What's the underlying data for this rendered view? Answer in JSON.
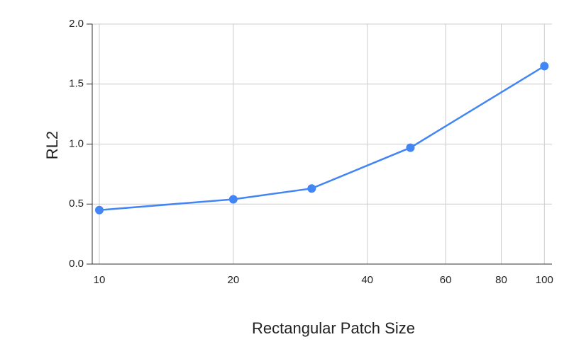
{
  "chart_data": {
    "type": "line",
    "x_label": "Rectangular Patch Size",
    "y_label": "RL2",
    "x": [
      10,
      20,
      30,
      50,
      100
    ],
    "series": [
      {
        "name": "RL2",
        "color": "#4285f4",
        "values": [
          0.45,
          0.54,
          0.63,
          0.97,
          1.65
        ]
      }
    ],
    "xlim": [
      9.64,
      104
    ],
    "xticks": [
      10,
      20,
      40,
      60,
      80,
      100
    ],
    "xscale": "log",
    "ylim": [
      0,
      2
    ],
    "yticks": [
      {
        "value": 0,
        "label": "0.0"
      },
      {
        "value": 0.5,
        "label": "0.5"
      },
      {
        "value": 1,
        "label": "1.0"
      },
      {
        "value": 1.5,
        "label": "1.5"
      },
      {
        "value": 2,
        "label": "2.0"
      }
    ],
    "grid": true
  }
}
